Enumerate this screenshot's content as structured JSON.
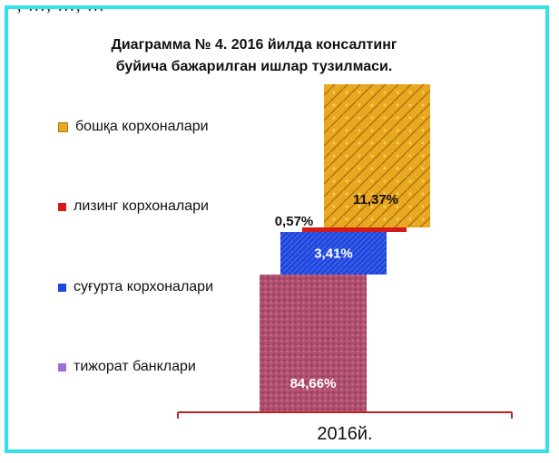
{
  "top_clipped_text": ", ..., ..., ...",
  "chart_data": {
    "type": "bar",
    "stacked": true,
    "title": "Диаграмма № 4. 2016 йилда консалтинг буйича бажарилган ишлар тузилмаси.",
    "categories": [
      "2016й."
    ],
    "series": [
      {
        "name": "тижорат банклари",
        "values": [
          84.66
        ],
        "label": "84,66%",
        "color": "#b0506f"
      },
      {
        "name": "суғурта корхоналари",
        "values": [
          3.41
        ],
        "label": "3,41%",
        "color": "#1f46d8"
      },
      {
        "name": "лизинг корхоналари",
        "values": [
          0.57
        ],
        "label": "0,57%",
        "color": "#d21a1a"
      },
      {
        "name": "бошқа корхоналари",
        "values": [
          11.37
        ],
        "label": "11,37%",
        "color": "#e8a820"
      }
    ],
    "legend_position": "left",
    "grid": false
  },
  "colors": {
    "frame": "#33e1ea",
    "axis": "#c0242a"
  }
}
